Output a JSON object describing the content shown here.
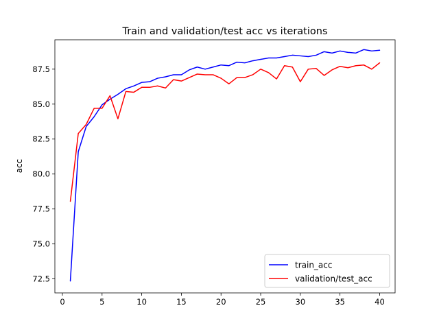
{
  "chart_data": {
    "type": "line",
    "title": "Train and validation/test acc vs iterations",
    "xlabel": "",
    "ylabel": "acc",
    "xlim": [
      -0.95,
      41.95
    ],
    "ylim": [
      71.5,
      89.6
    ],
    "xticks": [
      0,
      5,
      10,
      15,
      20,
      25,
      30,
      35,
      40
    ],
    "yticks": [
      72.5,
      75.0,
      77.5,
      80.0,
      82.5,
      85.0,
      87.5
    ],
    "grid": false,
    "legend_position": "lower-right",
    "x": [
      1,
      2,
      3,
      4,
      5,
      6,
      7,
      8,
      9,
      10,
      11,
      12,
      13,
      14,
      15,
      16,
      17,
      18,
      19,
      20,
      21,
      22,
      23,
      24,
      25,
      26,
      27,
      28,
      29,
      30,
      31,
      32,
      33,
      34,
      35,
      36,
      37,
      38,
      39,
      40
    ],
    "series": [
      {
        "name": "train_acc",
        "color": "#0000ff",
        "values": [
          72.35,
          81.6,
          83.4,
          84.1,
          84.95,
          85.35,
          85.7,
          86.1,
          86.3,
          86.55,
          86.6,
          86.85,
          86.95,
          87.1,
          87.1,
          87.45,
          87.65,
          87.5,
          87.65,
          87.8,
          87.75,
          88.0,
          87.95,
          88.1,
          88.2,
          88.3,
          88.3,
          88.4,
          88.5,
          88.45,
          88.4,
          88.5,
          88.75,
          88.65,
          88.8,
          88.7,
          88.65,
          88.9,
          88.8,
          88.85
        ]
      },
      {
        "name": "validation/test_acc",
        "color": "#ff0000",
        "values": [
          78.05,
          82.9,
          83.55,
          84.7,
          84.7,
          85.6,
          83.95,
          85.9,
          85.85,
          86.2,
          86.2,
          86.3,
          86.15,
          86.75,
          86.65,
          86.9,
          87.15,
          87.1,
          87.1,
          86.85,
          86.45,
          86.9,
          86.9,
          87.1,
          87.5,
          87.25,
          86.8,
          87.75,
          87.65,
          86.6,
          87.5,
          87.55,
          87.05,
          87.45,
          87.7,
          87.6,
          87.75,
          87.8,
          87.5,
          87.95
        ]
      }
    ]
  }
}
